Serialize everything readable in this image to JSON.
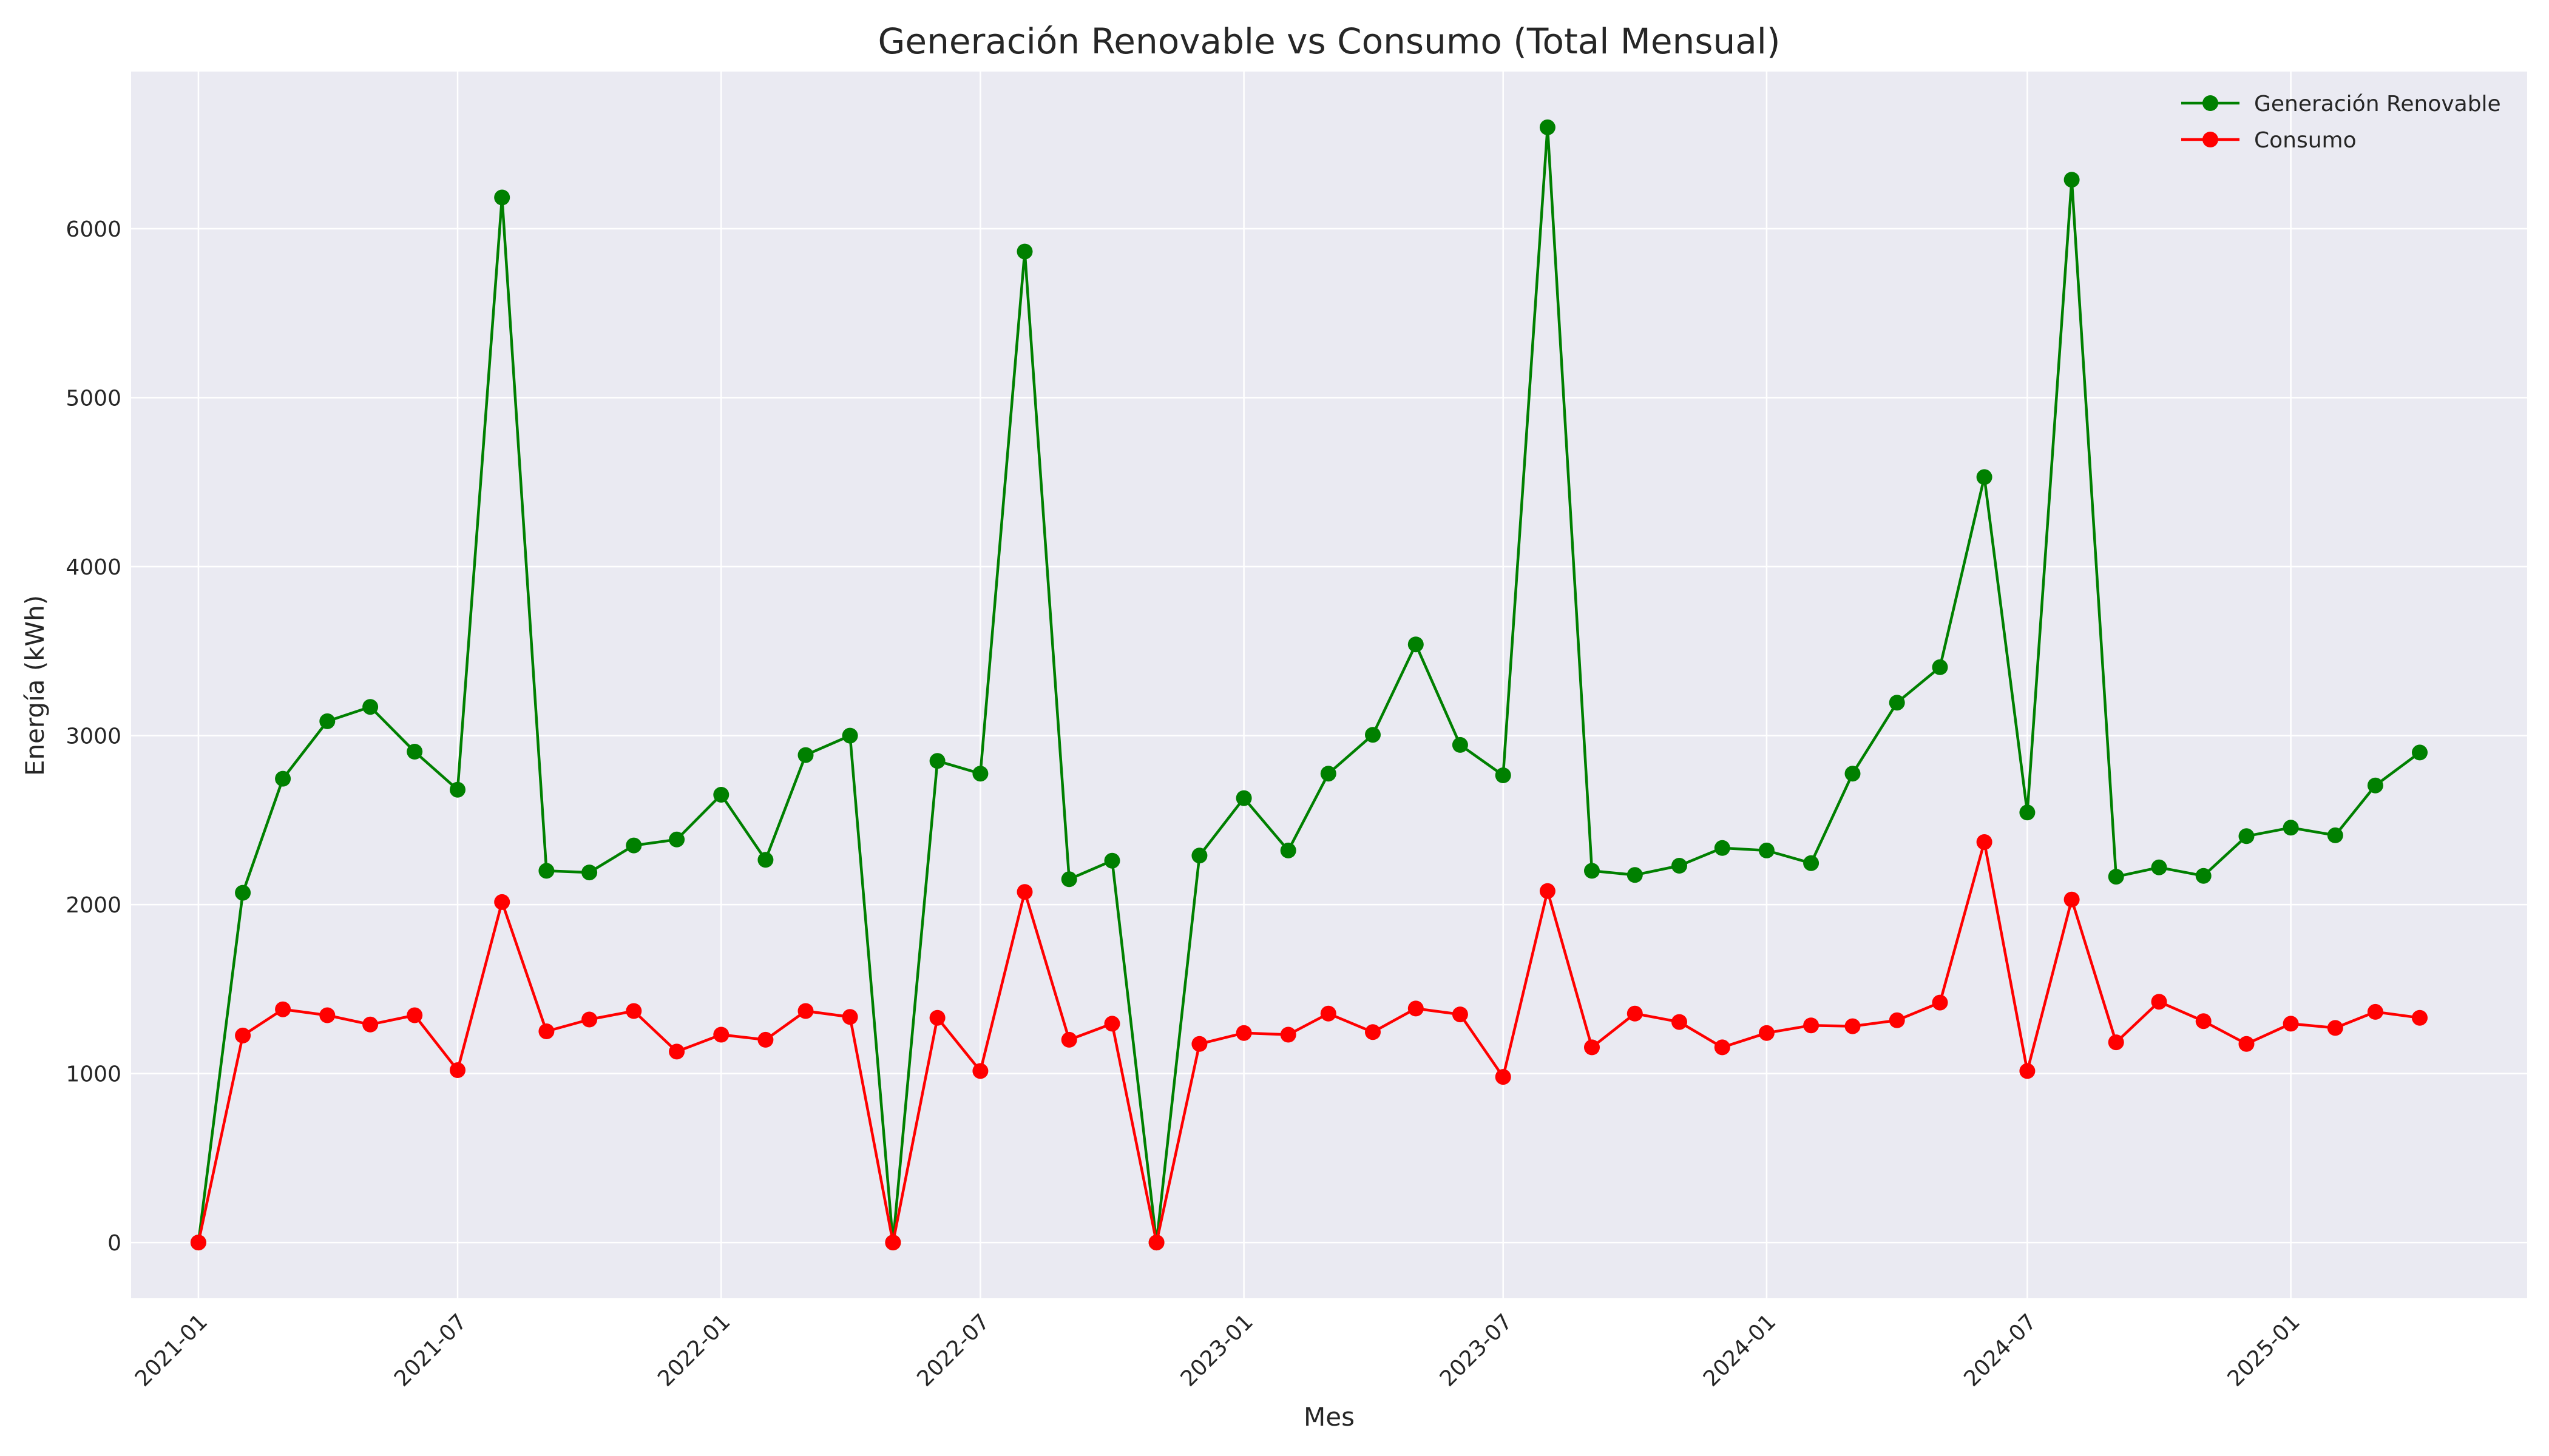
{
  "chart_data": {
    "type": "line",
    "title": "Generación Renovable vs Consumo (Total Mensual)",
    "xlabel": "Mes",
    "ylabel": "Energía (kWh)",
    "x": [
      "2021-01",
      "2021-02",
      "2021-03",
      "2021-04",
      "2021-05",
      "2021-06",
      "2021-07",
      "2021-08",
      "2021-09",
      "2021-10",
      "2021-11",
      "2021-12",
      "2022-01",
      "2022-02",
      "2022-03",
      "2022-04",
      "2022-05",
      "2022-06",
      "2022-07",
      "2022-08",
      "2022-09",
      "2022-10",
      "2022-11",
      "2022-12",
      "2023-01",
      "2023-02",
      "2023-03",
      "2023-04",
      "2023-05",
      "2023-06",
      "2023-07",
      "2023-08",
      "2023-09",
      "2023-10",
      "2023-11",
      "2023-12",
      "2024-01",
      "2024-02",
      "2024-03",
      "2024-04",
      "2024-05",
      "2024-06",
      "2024-07",
      "2024-08",
      "2024-09",
      "2024-10",
      "2024-11",
      "2024-12",
      "2025-01",
      "2025-02",
      "2025-03",
      "2025-04"
    ],
    "xticks": [
      "2021-01",
      "2021-07",
      "2022-01",
      "2022-07",
      "2023-01",
      "2023-07",
      "2024-01",
      "2024-07",
      "2025-01"
    ],
    "xlim": [
      "2020-11-15",
      "2025-06-15"
    ],
    "ylim": [
      -330,
      6930
    ],
    "yticks": [
      0,
      1000,
      2000,
      3000,
      4000,
      5000,
      6000
    ],
    "grid": true,
    "legend_position": "top-right",
    "series": [
      {
        "name": "Generación Renovable",
        "color": "#008000",
        "values": [
          0,
          2070,
          2745,
          3085,
          3170,
          2905,
          2680,
          6185,
          2200,
          2190,
          2350,
          2385,
          2650,
          2265,
          2885,
          3000,
          0,
          2850,
          2775,
          5865,
          2150,
          2260,
          0,
          2290,
          2630,
          2320,
          2775,
          3005,
          3540,
          2945,
          2765,
          6600,
          2200,
          2175,
          2230,
          2335,
          2320,
          2245,
          2775,
          3195,
          3405,
          4530,
          2545,
          6290,
          2165,
          2220,
          2170,
          2405,
          2455,
          2410,
          2705,
          2900
        ]
      },
      {
        "name": "Consumo",
        "color": "#ff0000",
        "values": [
          0,
          1225,
          1380,
          1345,
          1290,
          1345,
          1020,
          2015,
          1250,
          1320,
          1370,
          1130,
          1230,
          1200,
          1370,
          1335,
          0,
          1330,
          1015,
          2075,
          1200,
          1295,
          0,
          1175,
          1240,
          1230,
          1355,
          1245,
          1385,
          1350,
          980,
          2080,
          1155,
          1355,
          1305,
          1155,
          1240,
          1285,
          1280,
          1315,
          1420,
          2370,
          1015,
          2030,
          1185,
          1425,
          1310,
          1175,
          1295,
          1270,
          1365,
          1330
        ]
      }
    ]
  }
}
